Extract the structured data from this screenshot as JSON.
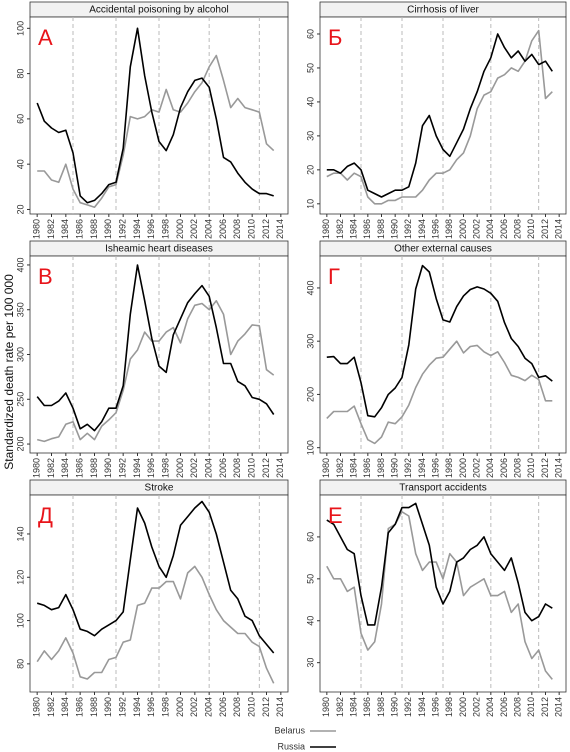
{
  "ylabel": "Standardized death rate per 100 000",
  "chart_data": [
    {
      "type": "line",
      "title": "Accidental poisoning by alcohol",
      "label": "А",
      "x": [
        1980,
        1981,
        1982,
        1983,
        1984,
        1985,
        1986,
        1987,
        1988,
        1989,
        1990,
        1991,
        1992,
        1993,
        1994,
        1995,
        1996,
        1997,
        1998,
        1999,
        2000,
        2001,
        2002,
        2003,
        2004,
        2005,
        2006,
        2007,
        2008,
        2009,
        2010,
        2011,
        2012,
        2013
      ],
      "series": [
        {
          "name": "Belarus",
          "color": "#999999",
          "values": [
            37,
            37,
            33,
            32,
            40,
            29,
            23,
            22,
            21,
            25,
            30,
            31,
            44,
            61,
            60,
            61,
            64,
            63,
            73,
            64,
            63,
            67,
            72,
            76,
            83,
            88,
            77,
            65,
            69,
            65,
            64,
            63,
            49,
            46
          ]
        },
        {
          "name": "Russia",
          "color": "#000000",
          "values": [
            67,
            59,
            56,
            54,
            55,
            45,
            26,
            23,
            24,
            27,
            31,
            32,
            47,
            83,
            100,
            79,
            63,
            50,
            46,
            53,
            65,
            72,
            77,
            78,
            74,
            60,
            43,
            41,
            36,
            32,
            29,
            27,
            27,
            26
          ]
        }
      ],
      "xlim": [
        1979,
        2015
      ],
      "xticks": [
        1980,
        1982,
        1984,
        1986,
        1988,
        1990,
        1992,
        1994,
        1996,
        1998,
        2000,
        2002,
        2004,
        2006,
        2008,
        2010,
        2012,
        2014
      ],
      "ylim": [
        18,
        105
      ],
      "yticks": [
        20,
        40,
        60,
        80,
        100
      ],
      "vlines": [
        1985,
        1991,
        1997,
        2004,
        2011
      ]
    },
    {
      "type": "line",
      "title": "Cirrhosis of liver",
      "label": "Б",
      "x": [
        1980,
        1981,
        1982,
        1983,
        1984,
        1985,
        1986,
        1987,
        1988,
        1989,
        1990,
        1991,
        1992,
        1993,
        1994,
        1995,
        1996,
        1997,
        1998,
        1999,
        2000,
        2001,
        2002,
        2003,
        2004,
        2005,
        2006,
        2007,
        2008,
        2009,
        2010,
        2011,
        2012,
        2013
      ],
      "series": [
        {
          "name": "Belarus",
          "color": "#999999",
          "values": [
            18,
            19,
            19,
            17,
            19,
            18,
            12,
            10,
            10,
            11,
            11,
            12,
            12,
            12,
            14,
            17,
            19,
            19,
            20,
            23,
            25,
            30,
            38,
            42,
            43,
            47,
            48,
            50,
            49,
            52,
            58,
            61,
            41,
            43
          ]
        },
        {
          "name": "Russia",
          "color": "#000000",
          "values": [
            20,
            20,
            19,
            21,
            22,
            20,
            14,
            13,
            12,
            13,
            14,
            14,
            15,
            22,
            33,
            36,
            30,
            26,
            24,
            28,
            32,
            38,
            43,
            49,
            53,
            60,
            56,
            53,
            55,
            52,
            54,
            51,
            52,
            49
          ]
        }
      ],
      "xlim": [
        1979,
        2015
      ],
      "xticks": [
        1980,
        1982,
        1984,
        1986,
        1988,
        1990,
        1992,
        1994,
        1996,
        1998,
        2000,
        2002,
        2004,
        2006,
        2008,
        2010,
        2012,
        2014
      ],
      "ylim": [
        7,
        65
      ],
      "yticks": [
        10,
        20,
        30,
        40,
        50,
        60
      ],
      "vlines": [
        1985,
        1991,
        1997,
        2004,
        2011
      ]
    },
    {
      "type": "line",
      "title": "Isheamic heart diseases",
      "label": "В",
      "x": [
        1980,
        1981,
        1982,
        1983,
        1984,
        1985,
        1986,
        1987,
        1988,
        1989,
        1990,
        1991,
        1992,
        1993,
        1994,
        1995,
        1996,
        1997,
        1998,
        1999,
        2000,
        2001,
        2002,
        2003,
        2004,
        2005,
        2006,
        2007,
        2008,
        2009,
        2010,
        2011,
        2012,
        2013
      ],
      "series": [
        {
          "name": "Belarus",
          "color": "#999999",
          "values": [
            205,
            203,
            206,
            208,
            222,
            225,
            205,
            212,
            205,
            220,
            227,
            235,
            260,
            295,
            305,
            325,
            315,
            315,
            325,
            330,
            313,
            340,
            355,
            357,
            350,
            360,
            345,
            300,
            315,
            323,
            333,
            332,
            283,
            277
          ]
        },
        {
          "name": "Russia",
          "color": "#000000",
          "values": [
            253,
            243,
            243,
            248,
            257,
            240,
            217,
            222,
            215,
            225,
            240,
            240,
            265,
            345,
            400,
            360,
            318,
            287,
            280,
            322,
            340,
            358,
            368,
            377,
            365,
            330,
            290,
            290,
            270,
            265,
            252,
            250,
            245,
            233
          ]
        }
      ],
      "xlim": [
        1979,
        2015
      ],
      "xticks": [
        1980,
        1982,
        1984,
        1986,
        1988,
        1990,
        1992,
        1994,
        1996,
        1998,
        2000,
        2002,
        2004,
        2006,
        2008,
        2010,
        2012,
        2014
      ],
      "ylim": [
        190,
        410
      ],
      "yticks": [
        200,
        250,
        300,
        350,
        400
      ],
      "vlines": [
        1985,
        1991,
        1997,
        2004,
        2011
      ]
    },
    {
      "type": "line",
      "title": "Other external causes",
      "label": "Г",
      "x": [
        1980,
        1981,
        1982,
        1983,
        1984,
        1985,
        1986,
        1987,
        1988,
        1989,
        1990,
        1991,
        1992,
        1993,
        1994,
        1995,
        1996,
        1997,
        1998,
        1999,
        2000,
        2001,
        2002,
        2003,
        2004,
        2005,
        2006,
        2007,
        2008,
        2009,
        2010,
        2011,
        2012,
        2013
      ],
      "series": [
        {
          "name": "Belarus",
          "color": "#999999",
          "values": [
            155,
            168,
            168,
            168,
            178,
            145,
            115,
            108,
            120,
            148,
            145,
            158,
            180,
            213,
            238,
            255,
            268,
            270,
            285,
            300,
            278,
            290,
            292,
            280,
            273,
            280,
            260,
            236,
            232,
            226,
            236,
            228,
            188,
            188
          ]
        },
        {
          "name": "Russia",
          "color": "#000000",
          "values": [
            270,
            271,
            258,
            258,
            270,
            222,
            160,
            158,
            175,
            200,
            212,
            232,
            293,
            398,
            442,
            430,
            380,
            340,
            336,
            365,
            385,
            397,
            402,
            398,
            390,
            375,
            335,
            305,
            290,
            268,
            258,
            232,
            235,
            225
          ]
        }
      ],
      "xlim": [
        1979,
        2015
      ],
      "xticks": [
        1980,
        1982,
        1984,
        1986,
        1988,
        1990,
        1992,
        1994,
        1996,
        1998,
        2000,
        2002,
        2004,
        2006,
        2008,
        2010,
        2012,
        2014
      ],
      "ylim": [
        90,
        460
      ],
      "yticks": [
        100,
        200,
        300,
        400
      ],
      "vlines": [
        1985,
        1991,
        1997,
        2004,
        2011
      ]
    },
    {
      "type": "line",
      "title": "Stroke",
      "label": "Д",
      "x": [
        1980,
        1981,
        1982,
        1983,
        1984,
        1985,
        1986,
        1987,
        1988,
        1989,
        1990,
        1991,
        1992,
        1993,
        1994,
        1995,
        1996,
        1997,
        1998,
        1999,
        2000,
        2001,
        2002,
        2003,
        2004,
        2005,
        2006,
        2007,
        2008,
        2009,
        2010,
        2011,
        2012,
        2013
      ],
      "series": [
        {
          "name": "Belarus",
          "color": "#999999",
          "values": [
            81,
            86,
            82,
            86,
            92,
            85,
            74,
            73,
            76,
            76,
            82,
            83,
            90,
            91,
            107,
            108,
            115,
            115,
            118,
            118,
            110,
            122,
            125,
            120,
            112,
            105,
            100,
            97,
            94,
            94,
            90,
            88,
            78,
            71
          ]
        },
        {
          "name": "Russia",
          "color": "#000000",
          "values": [
            108,
            107,
            105,
            106,
            112,
            105,
            96,
            95,
            93,
            96,
            98,
            100,
            104,
            128,
            152,
            145,
            134,
            125,
            120,
            130,
            144,
            148,
            152,
            155,
            150,
            140,
            127,
            114,
            110,
            102,
            100,
            93,
            89,
            85
          ]
        }
      ],
      "xlim": [
        1979,
        2015
      ],
      "xticks": [
        1980,
        1982,
        1984,
        1986,
        1988,
        1990,
        1992,
        1994,
        1996,
        1998,
        2000,
        2002,
        2004,
        2006,
        2008,
        2010,
        2012,
        2014
      ],
      "ylim": [
        67,
        158
      ],
      "yticks": [
        80,
        100,
        120,
        140
      ],
      "vlines": [
        1985,
        1991,
        1997,
        2004,
        2011
      ]
    },
    {
      "type": "line",
      "title": "Transport accidents",
      "label": "Е",
      "x": [
        1980,
        1981,
        1982,
        1983,
        1984,
        1985,
        1986,
        1987,
        1988,
        1989,
        1990,
        1991,
        1992,
        1993,
        1994,
        1995,
        1996,
        1997,
        1998,
        1999,
        2000,
        2001,
        2002,
        2003,
        2004,
        2005,
        2006,
        2007,
        2008,
        2009,
        2010,
        2011,
        2012,
        2013
      ],
      "series": [
        {
          "name": "Belarus",
          "color": "#999999",
          "values": [
            53,
            50,
            50,
            47,
            48,
            37,
            33,
            35,
            44,
            62,
            63,
            66,
            65,
            56,
            52,
            54,
            54,
            50,
            56,
            54,
            46,
            48,
            49,
            50,
            46,
            46,
            47,
            42,
            44,
            35,
            31,
            33,
            28,
            26
          ]
        },
        {
          "name": "Russia",
          "color": "#000000",
          "values": [
            64,
            63,
            60,
            57,
            56,
            46,
            39,
            39,
            48,
            61,
            63,
            67,
            67,
            68,
            63,
            58,
            48,
            44,
            47,
            54,
            55,
            57,
            58,
            60,
            56,
            54,
            52,
            55,
            49,
            42,
            40,
            41,
            44,
            43
          ]
        }
      ],
      "xlim": [
        1979,
        2015
      ],
      "xticks": [
        1980,
        1982,
        1984,
        1986,
        1988,
        1990,
        1992,
        1994,
        1996,
        1998,
        2000,
        2002,
        2004,
        2006,
        2008,
        2010,
        2012,
        2014
      ],
      "ylim": [
        23,
        70
      ],
      "yticks": [
        30,
        40,
        50,
        60
      ],
      "vlines": [
        1985,
        1991,
        1997,
        2004,
        2011
      ]
    }
  ]
}
